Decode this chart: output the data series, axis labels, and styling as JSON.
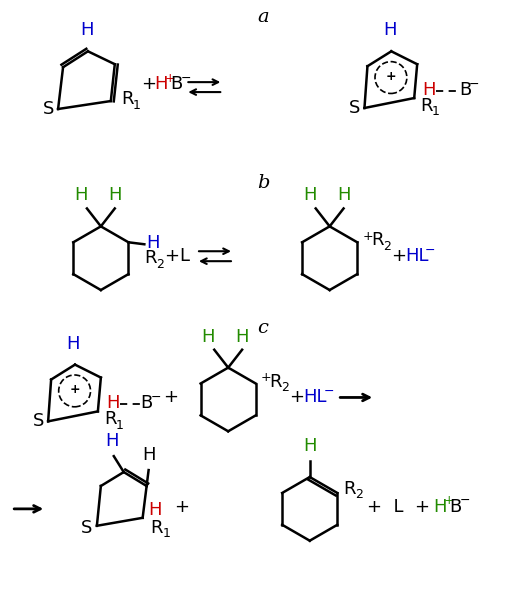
{
  "bg_color": "#ffffff",
  "black": "#000000",
  "red": "#cc0000",
  "blue": "#0000cd",
  "green": "#228b00",
  "title_a": "a",
  "title_b": "b",
  "title_c": "c"
}
